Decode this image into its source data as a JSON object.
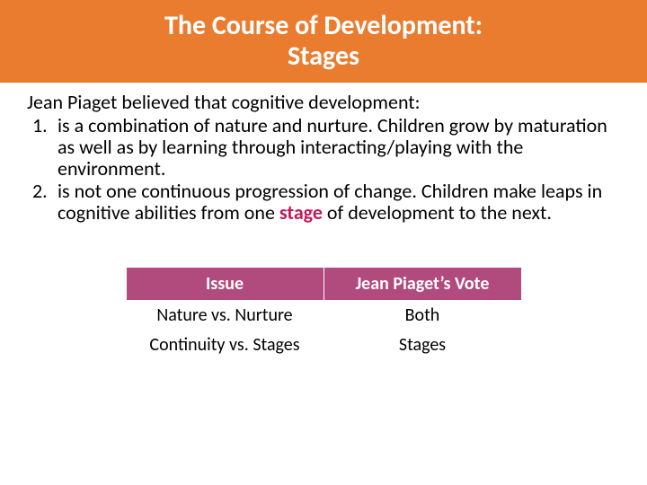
{
  "title": {
    "line1": "The Course of Development:",
    "line2": "Stages",
    "bg_color": "#e97c2f",
    "text_color": "#ffffff",
    "fontsize": 30
  },
  "intro": "Jean Piaget believed that cognitive development:",
  "list": [
    {
      "text_before": "is a combination of nature and nurture. Children grow by maturation as well as by learning through interacting/playing with the environment.",
      "highlight_word": "",
      "text_after": ""
    },
    {
      "text_before": "is not one continuous progression of change. Children make leaps in cognitive abilities from one ",
      "highlight_word": "stage",
      "text_after": " of development to the next."
    }
  ],
  "highlight_color": "#c2185b",
  "table": {
    "header_bg": "#b14a7d",
    "columns": [
      "Issue",
      "Jean Piaget’s Vote"
    ],
    "rows": [
      [
        "Nature vs. Nurture",
        "Both"
      ],
      [
        "Continuity vs. Stages",
        "Stages"
      ]
    ]
  },
  "body_fontsize": 22,
  "table_fontsize": 20
}
